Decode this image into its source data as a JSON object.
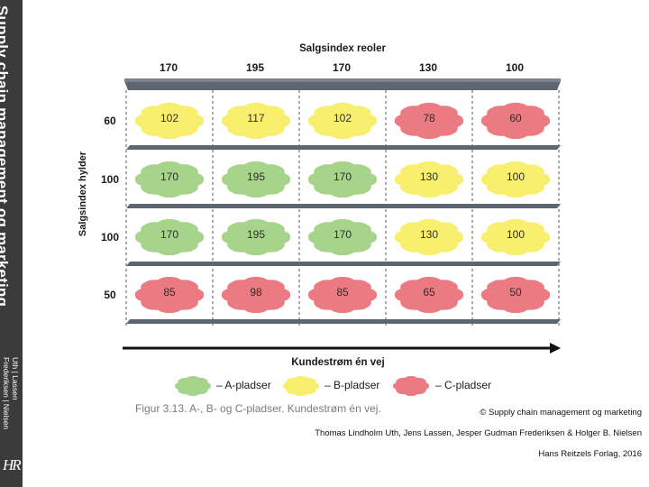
{
  "sidebar": {
    "title": "Supply chain management og marketing",
    "authors_line1": "Uth | Lassen",
    "authors_line2": "Frederiksen | Nielsen",
    "logo": "HR"
  },
  "diagram": {
    "column_header": "Salgsindex reoler",
    "columns": [
      "170",
      "195",
      "170",
      "130",
      "100"
    ],
    "row_axis_title": "Salgsindex hylder",
    "rows": [
      {
        "label": "60",
        "cells": [
          {
            "value": "102",
            "class": "B"
          },
          {
            "value": "117",
            "class": "B"
          },
          {
            "value": "102",
            "class": "B"
          },
          {
            "value": "78",
            "class": "C"
          },
          {
            "value": "60",
            "class": "C"
          }
        ]
      },
      {
        "label": "100",
        "cells": [
          {
            "value": "170",
            "class": "A"
          },
          {
            "value": "195",
            "class": "A"
          },
          {
            "value": "170",
            "class": "A"
          },
          {
            "value": "130",
            "class": "B"
          },
          {
            "value": "100",
            "class": "B"
          }
        ]
      },
      {
        "label": "100",
        "cells": [
          {
            "value": "170",
            "class": "A"
          },
          {
            "value": "195",
            "class": "A"
          },
          {
            "value": "170",
            "class": "A"
          },
          {
            "value": "130",
            "class": "B"
          },
          {
            "value": "100",
            "class": "B"
          }
        ]
      },
      {
        "label": "50",
        "cells": [
          {
            "value": "85",
            "class": "C"
          },
          {
            "value": "98",
            "class": "C"
          },
          {
            "value": "85",
            "class": "C"
          },
          {
            "value": "65",
            "class": "C"
          },
          {
            "value": "50",
            "class": "C"
          }
        ]
      }
    ],
    "flow_label": "Kundestrøm én vej",
    "legend": [
      {
        "class": "A",
        "label": "– A-pladser"
      },
      {
        "class": "B",
        "label": "– B-pladser"
      },
      {
        "class": "C",
        "label": "– C-pladser"
      }
    ],
    "colors": {
      "A": "#a6d48a",
      "B": "#f8ef6e",
      "C": "#ec7a82",
      "shelf": "#5d6671",
      "shelf_top": "#7a8390"
    },
    "caption": "Figur 3.13. A-, B- og C-pladser. Kundestrøm én vej."
  },
  "credits": {
    "copyright": "© Supply chain management og marketing",
    "authors": "Thomas Lindholm Uth, Jens Lassen, Jesper Gudman Frederiksen & Holger B. Nielsen",
    "publisher": "Hans Reitzels Forlag, 2016"
  }
}
